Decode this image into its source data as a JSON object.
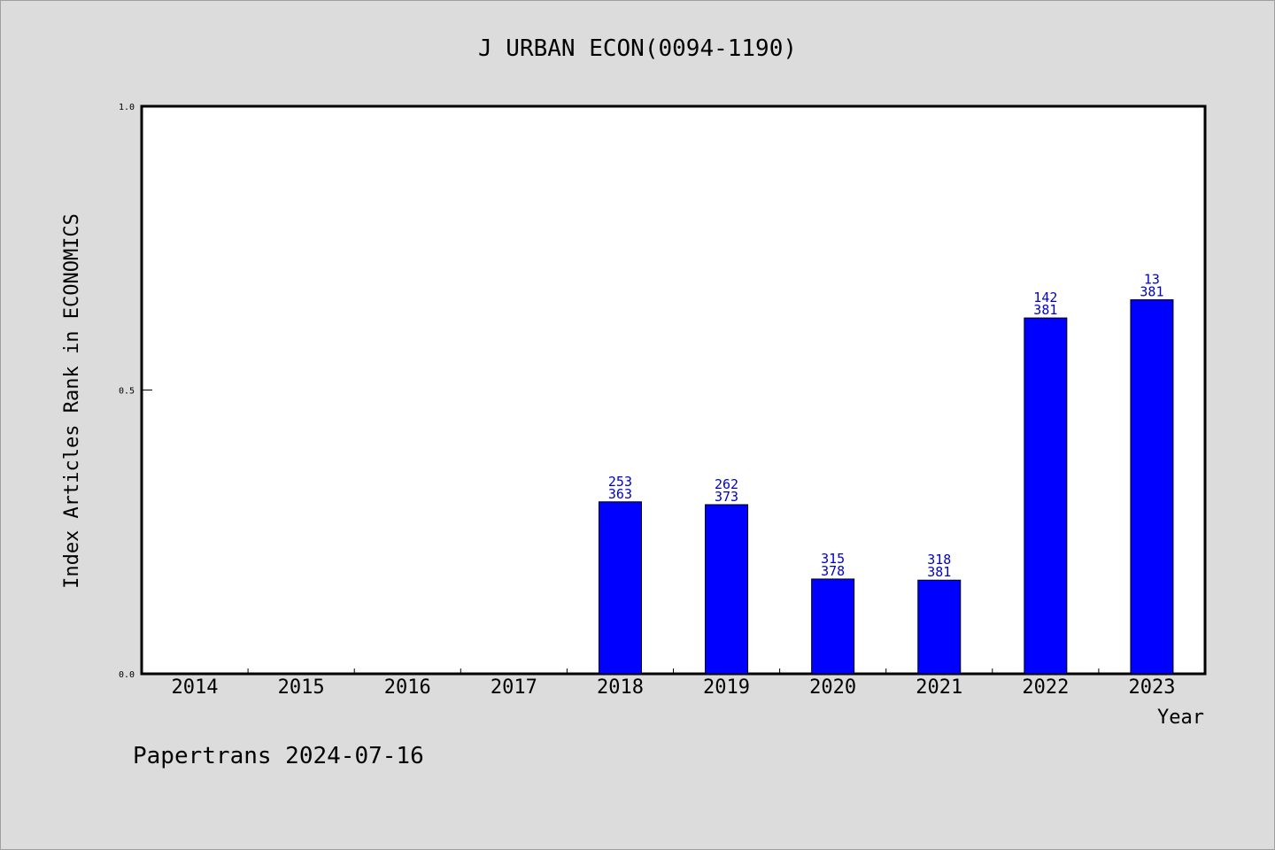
{
  "chart_data": {
    "type": "bar",
    "title": "J URBAN ECON(0094-1190)",
    "xlabel": "Year",
    "ylabel": "Index Articles Rank in ECONOMICS",
    "ylim": [
      0,
      1.0
    ],
    "yticks": [
      "0.0",
      "0.5",
      "1.0"
    ],
    "ytick_values": [
      0.0,
      0.5,
      1.0
    ],
    "categories": [
      "2014",
      "2015",
      "2016",
      "2017",
      "2018",
      "2019",
      "2020",
      "2021",
      "2022",
      "2023"
    ],
    "values": [
      null,
      null,
      null,
      null,
      0.303,
      0.298,
      0.167,
      0.165,
      0.627,
      0.659
    ],
    "labels_top": [
      null,
      null,
      null,
      null,
      "253",
      "262",
      "315",
      "318",
      "142",
      "13"
    ],
    "labels_bottom": [
      null,
      null,
      null,
      null,
      "363",
      "373",
      "378",
      "381",
      "381",
      "381"
    ],
    "bar_color": "#0000ff",
    "label_color": "#0000cc",
    "grid": false,
    "legend": "none"
  },
  "footer": "Papertrans 2024-07-16"
}
